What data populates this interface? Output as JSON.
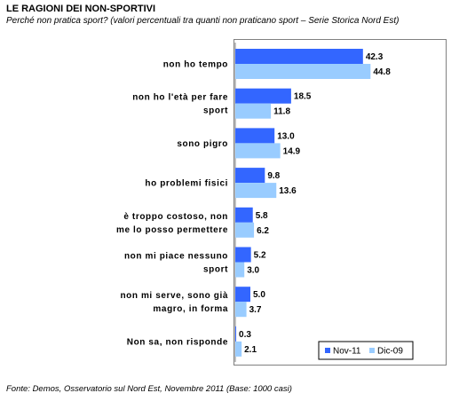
{
  "title": "LE RAGIONI DEI NON-SPORTIVI",
  "subtitle": "Perché non pratica sport? (valori percentuali tra quanti non praticano sport – Serie Storica Nord Est)",
  "footer": "Fonte: Demos, Osservatorio sul Nord Est, Novembre  2011 (Base: 1000 casi)",
  "colors": {
    "series1": "#3366ff",
    "series2": "#99ccff"
  },
  "chart_data": {
    "type": "bar",
    "orientation": "horizontal",
    "categories": [
      "non ho tempo",
      "non ho l'età per fare sport",
      "sono pigro",
      "ho problemi fisici",
      "è troppo costoso, non me lo posso permettere",
      "non mi piace nessuno sport",
      "non mi serve, sono già magro, in forma",
      "Non sa, non risponde"
    ],
    "series": [
      {
        "name": "Nov-11",
        "values": [
          42.3,
          18.5,
          13.0,
          9.8,
          5.8,
          5.2,
          5.0,
          0.3
        ]
      },
      {
        "name": "Dic-09",
        "values": [
          44.8,
          11.8,
          14.9,
          13.6,
          6.2,
          3.0,
          3.7,
          2.1
        ]
      }
    ],
    "xlim": [
      0,
      60
    ],
    "grid": false,
    "legend": "bottom-right"
  }
}
